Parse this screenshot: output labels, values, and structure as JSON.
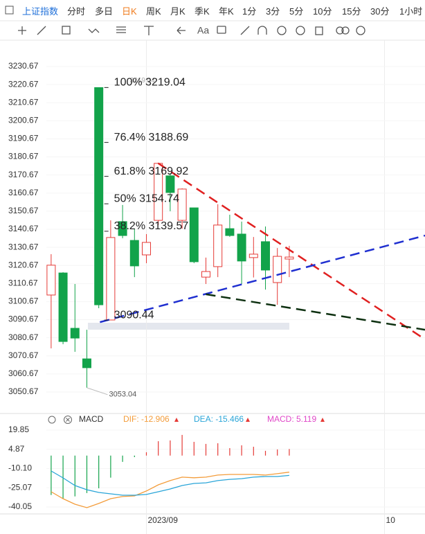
{
  "symbol": "上证指数",
  "tabs": [
    "分时",
    "多日",
    "日K",
    "周K",
    "月K",
    "季K",
    "年K",
    "1分",
    "3分",
    "5分",
    "10分",
    "15分",
    "30分",
    "1小时"
  ],
  "active_tab": 2,
  "toolbar_text": "Aa",
  "chart_data": [
    {
      "type": "candlestick",
      "categories": [
        null,
        null,
        null,
        null,
        null,
        null,
        null,
        null,
        null,
        null,
        null,
        null,
        null,
        null,
        null,
        null,
        null,
        null,
        null,
        null,
        null
      ],
      "open": [
        3104.3,
        3116.5,
        3085.9,
        3069.0,
        3219.0,
        3090.5,
        3144.9,
        3134.5,
        3126.5,
        3145.6,
        3170.2,
        3145.6,
        3152.5,
        3114.2,
        3120.0,
        3141.0,
        3138.0,
        3125.0,
        3133.8,
        3111.2,
        3124.2
      ],
      "close": [
        3120.8,
        3078.6,
        3080.5,
        3064.1,
        3098.9,
        3136.1,
        3137.2,
        3120.4,
        3133.4,
        3177.1,
        3161.0,
        3162.9,
        3122.7,
        3117.3,
        3143.0,
        3137.2,
        3123.1,
        3126.9,
        3118.1,
        3125.7,
        3125.3
      ],
      "high": [
        3126.9,
        3116.9,
        3110.4,
        3085.1,
        3219.04,
        3145.6,
        3154.1,
        3141.0,
        3138.0,
        3177.5,
        3171.7,
        3163.3,
        3152.5,
        3125.0,
        3154.5,
        3148.7,
        3144.9,
        3136.4,
        3142.2,
        3130.3,
        3131.5
      ],
      "low": [
        3074.8,
        3077.1,
        3072.9,
        3053.04,
        3097.0,
        3090.44,
        3135.7,
        3114.2,
        3121.9,
        3143.0,
        3150.6,
        3141.0,
        3121.9,
        3110.4,
        3114.2,
        3136.5,
        3110.4,
        3114.0,
        3107.3,
        3098.9,
        3114.2
      ],
      "up_color": "#e53935",
      "down_color": "#12a34a",
      "xlim": [
        -0.4,
        31.4
      ],
      "xticks": [
        {
          "value": 8,
          "label": "2023/09"
        },
        {
          "value": 28,
          "label": "10"
        }
      ],
      "ylim": [
        3039.56,
        3243.69
      ],
      "yticks": [
        3230.67,
        3220.67,
        3210.67,
        3200.67,
        3190.67,
        3180.67,
        3170.67,
        3160.67,
        3150.67,
        3140.67,
        3130.67,
        3120.67,
        3110.67,
        3100.67,
        3090.67,
        3080.67,
        3070.67,
        3060.67,
        3050.67
      ],
      "fib_levels": [
        {
          "value": 3219.04,
          "label": "100% 3219.04"
        },
        {
          "value": 3188.69,
          "label": "76.4% 3188.69"
        },
        {
          "value": 3169.92,
          "label": "61.8% 3169.92"
        },
        {
          "value": 3154.74,
          "label": "50% 3154.74"
        },
        {
          "value": 3139.57,
          "label": "38.2% 3139.57"
        },
        {
          "value": 3090.44,
          "label": "3090.44"
        }
      ],
      "high_annotation": 3219.04,
      "low_annotation": 3053.04,
      "trend_lines": [
        {
          "color": "#e02020",
          "x": [
            9,
            31.4
          ],
          "values": [
            3177.1,
            3079.8
          ]
        },
        {
          "color": "#1f2fd0",
          "x": [
            4.1,
            31.4
          ],
          "values": [
            3089.3,
            3137.2
          ]
        },
        {
          "color": "#0d3010",
          "x": [
            13,
            31.4
          ],
          "values": [
            3104.7,
            3085.1
          ]
        }
      ]
    },
    {
      "type": "macd",
      "title": "MACD",
      "categories": [
        null,
        null,
        null,
        null,
        null,
        null,
        null,
        null,
        null,
        null,
        null,
        null,
        null,
        null,
        null,
        null,
        null,
        null,
        null,
        null,
        null
      ],
      "series": [
        {
          "name": "DIF: -12.906",
          "color": "#f39c3a",
          "values": [
            -28.2,
            -33.6,
            -37.9,
            -40.6,
            -37.3,
            -33.6,
            -31.9,
            -31.4,
            -27.6,
            -22.8,
            -19.5,
            -16.8,
            -17.3,
            -16.8,
            -15.2,
            -14.7,
            -14.7,
            -14.7,
            -15.2,
            -14.1,
            -12.906
          ]
        },
        {
          "name": "DEA: -15.466",
          "color": "#29a5d8",
          "values": [
            -12.0,
            -17.4,
            -23.3,
            -26.6,
            -28.7,
            -29.8,
            -30.9,
            -30.9,
            -30.3,
            -28.2,
            -26.0,
            -23.3,
            -21.7,
            -21.2,
            -19.5,
            -18.5,
            -18.0,
            -16.8,
            -16.3,
            -16.3,
            -15.466
          ]
        },
        {
          "name": "MACD: 5.119",
          "color": "#e047c8",
          "up_color": "#e53935",
          "down_color": "#12a34a",
          "values": [
            -30.7,
            -33.4,
            -31.8,
            -29.2,
            -25.5,
            -17.2,
            -4.9,
            -1.2,
            2.6,
            11.2,
            11.8,
            16.1,
            10.7,
            9.1,
            9.6,
            5.8,
            8.0,
            6.9,
            3.7,
            4.8,
            5.119
          ]
        }
      ],
      "xlim": [
        -0.4,
        31.4
      ],
      "ylim": [
        -45.45,
        24.7
      ],
      "yticks": [
        19.85,
        4.87,
        {
          "value": -10.1,
          "label": "-10.10"
        },
        -25.07,
        -40.05
      ]
    }
  ]
}
